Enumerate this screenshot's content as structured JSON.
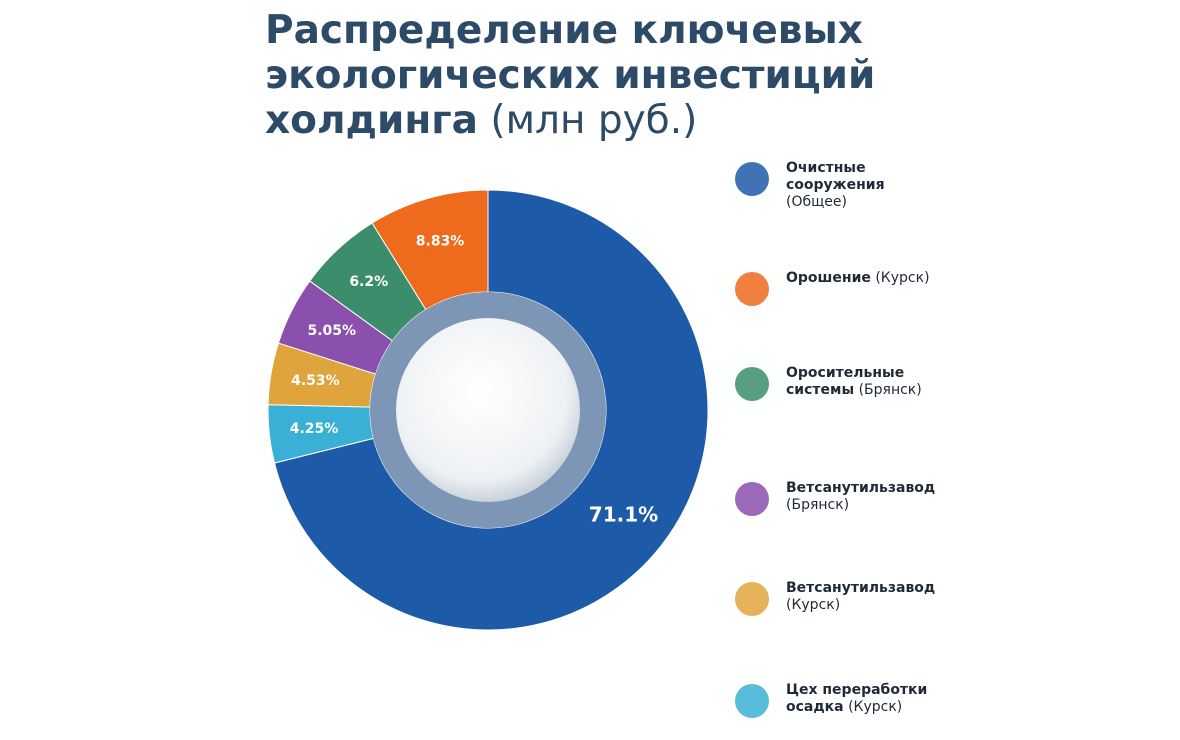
{
  "chart_data": {
    "type": "donut",
    "title": "Распределение ключевых экологических инвестиций холдинга",
    "unit": "(млн руб.)",
    "categories": [
      "Очистные сооружения",
      "Орошение",
      "Оросительные системы",
      "Ветсанутильзавод",
      "Ветсанутильзавод",
      "Цех переработки осадка"
    ],
    "regions": [
      "(Общее)",
      "(Курск)",
      "(Брянск)",
      "(Брянск)",
      "(Курск)",
      "(Курск)"
    ],
    "values": [
      71.1,
      8.83,
      6.2,
      5.05,
      4.53,
      4.25
    ],
    "value_labels": [
      "71.1%",
      "8.83%",
      "6.2%",
      "5.05%",
      "4.53%",
      "4.25%"
    ],
    "colors": [
      "#1d5aa8",
      "#ee6a1c",
      "#3b8d6c",
      "#8b4fae",
      "#e0a43c",
      "#3bb0d6"
    ]
  }
}
